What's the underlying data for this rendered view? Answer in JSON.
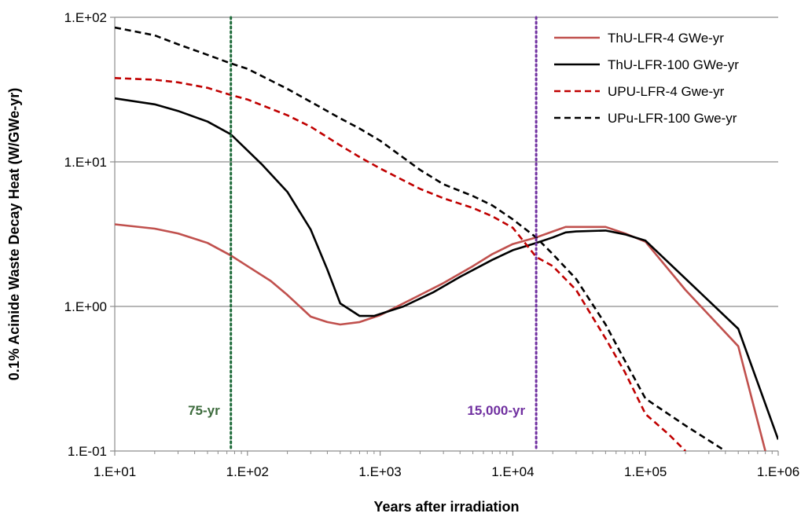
{
  "chart_data": {
    "type": "line",
    "title": "",
    "xlabel": "Years after irradiation",
    "ylabel": "0.1% Acinide Waste Decay Heat (W/GWe-yr)",
    "xscale": "log",
    "yscale": "log",
    "xlim": [
      10,
      1000000
    ],
    "ylim": [
      0.1,
      100
    ],
    "x_ticks": [
      10,
      100,
      1000,
      10000,
      100000,
      1000000
    ],
    "x_tick_labels": [
      "1.E+01",
      "1.E+02",
      "1.E+03",
      "1.E+04",
      "1.E+05",
      "1.E+06"
    ],
    "y_ticks": [
      0.1,
      1,
      10,
      100
    ],
    "y_tick_labels": [
      "1.E-01",
      "1.E+00",
      "1.E+01",
      "1.E+02"
    ],
    "grid": "horizontal",
    "legend_position": "top-right",
    "series": [
      {
        "name": "ThU-LFR-4 GWe-yr",
        "color": "#c0504d",
        "dash": "solid",
        "points": [
          [
            10,
            3.7
          ],
          [
            20,
            3.45
          ],
          [
            30,
            3.2
          ],
          [
            50,
            2.75
          ],
          [
            75,
            2.25
          ],
          [
            100,
            1.9
          ],
          [
            150,
            1.5
          ],
          [
            200,
            1.2
          ],
          [
            300,
            0.85
          ],
          [
            400,
            0.78
          ],
          [
            500,
            0.75
          ],
          [
            700,
            0.78
          ],
          [
            1000,
            0.87
          ],
          [
            2000,
            1.2
          ],
          [
            3000,
            1.45
          ],
          [
            5000,
            1.9
          ],
          [
            7000,
            2.3
          ],
          [
            10000,
            2.7
          ],
          [
            15000,
            3.0
          ],
          [
            20000,
            3.3
          ],
          [
            25000,
            3.55
          ],
          [
            30000,
            3.55
          ],
          [
            50000,
            3.55
          ],
          [
            70000,
            3.2
          ],
          [
            100000,
            2.8
          ],
          [
            200000,
            1.3
          ],
          [
            500000,
            0.53
          ],
          [
            800000,
            0.1
          ]
        ]
      },
      {
        "name": "ThU-LFR-100 GWe-yr",
        "color": "#000000",
        "dash": "solid",
        "points": [
          [
            10,
            27.5
          ],
          [
            20,
            25
          ],
          [
            30,
            22.5
          ],
          [
            50,
            19
          ],
          [
            75,
            15.5
          ],
          [
            100,
            12
          ],
          [
            130,
            9.5
          ],
          [
            200,
            6.2
          ],
          [
            300,
            3.4
          ],
          [
            400,
            1.8
          ],
          [
            500,
            1.05
          ],
          [
            700,
            0.86
          ],
          [
            900,
            0.86
          ],
          [
            1500,
            1.0
          ],
          [
            2500,
            1.25
          ],
          [
            4000,
            1.6
          ],
          [
            7000,
            2.1
          ],
          [
            10000,
            2.45
          ],
          [
            15000,
            2.75
          ],
          [
            20000,
            3.0
          ],
          [
            25000,
            3.25
          ],
          [
            30000,
            3.3
          ],
          [
            50000,
            3.35
          ],
          [
            70000,
            3.15
          ],
          [
            100000,
            2.85
          ],
          [
            500000,
            0.7
          ],
          [
            1000000,
            0.12
          ]
        ]
      },
      {
        "name": "UPU-LFR-4 Gwe-yr",
        "color": "#c00000",
        "dash": "dashed",
        "points": [
          [
            10,
            38
          ],
          [
            20,
            37
          ],
          [
            30,
            35.5
          ],
          [
            50,
            32.5
          ],
          [
            75,
            29
          ],
          [
            100,
            27
          ],
          [
            200,
            21
          ],
          [
            300,
            17.5
          ],
          [
            500,
            13
          ],
          [
            700,
            10.8
          ],
          [
            1000,
            9
          ],
          [
            2000,
            6.5
          ],
          [
            3000,
            5.6
          ],
          [
            5000,
            4.8
          ],
          [
            7000,
            4.2
          ],
          [
            10000,
            3.5
          ],
          [
            15000,
            2.2
          ],
          [
            20000,
            1.9
          ],
          [
            30000,
            1.3
          ],
          [
            50000,
            0.6
          ],
          [
            70000,
            0.35
          ],
          [
            100000,
            0.18
          ],
          [
            150000,
            0.13
          ],
          [
            200000,
            0.1
          ]
        ]
      },
      {
        "name": "UPu-LFR-100 Gwe-yr",
        "color": "#000000",
        "dash": "dashed",
        "points": [
          [
            10,
            85
          ],
          [
            20,
            75
          ],
          [
            30,
            65
          ],
          [
            50,
            55
          ],
          [
            75,
            48
          ],
          [
            100,
            44
          ],
          [
            200,
            32
          ],
          [
            300,
            26
          ],
          [
            500,
            20
          ],
          [
            700,
            17
          ],
          [
            1000,
            14
          ],
          [
            2000,
            8.8
          ],
          [
            3000,
            7
          ],
          [
            5000,
            5.8
          ],
          [
            7000,
            5
          ],
          [
            10000,
            4
          ],
          [
            15000,
            3
          ],
          [
            20000,
            2.3
          ],
          [
            30000,
            1.55
          ],
          [
            50000,
            0.75
          ],
          [
            70000,
            0.42
          ],
          [
            100000,
            0.23
          ],
          [
            200000,
            0.15
          ],
          [
            400000,
            0.1
          ]
        ]
      }
    ],
    "vlines": [
      {
        "x": 75,
        "label": "75-yr",
        "color": "#1e6b3a",
        "label_color": "#3d6b3d"
      },
      {
        "x": 15000,
        "label": "15,000-yr",
        "color": "#7030a0",
        "label_color": "#7030a0"
      }
    ]
  }
}
